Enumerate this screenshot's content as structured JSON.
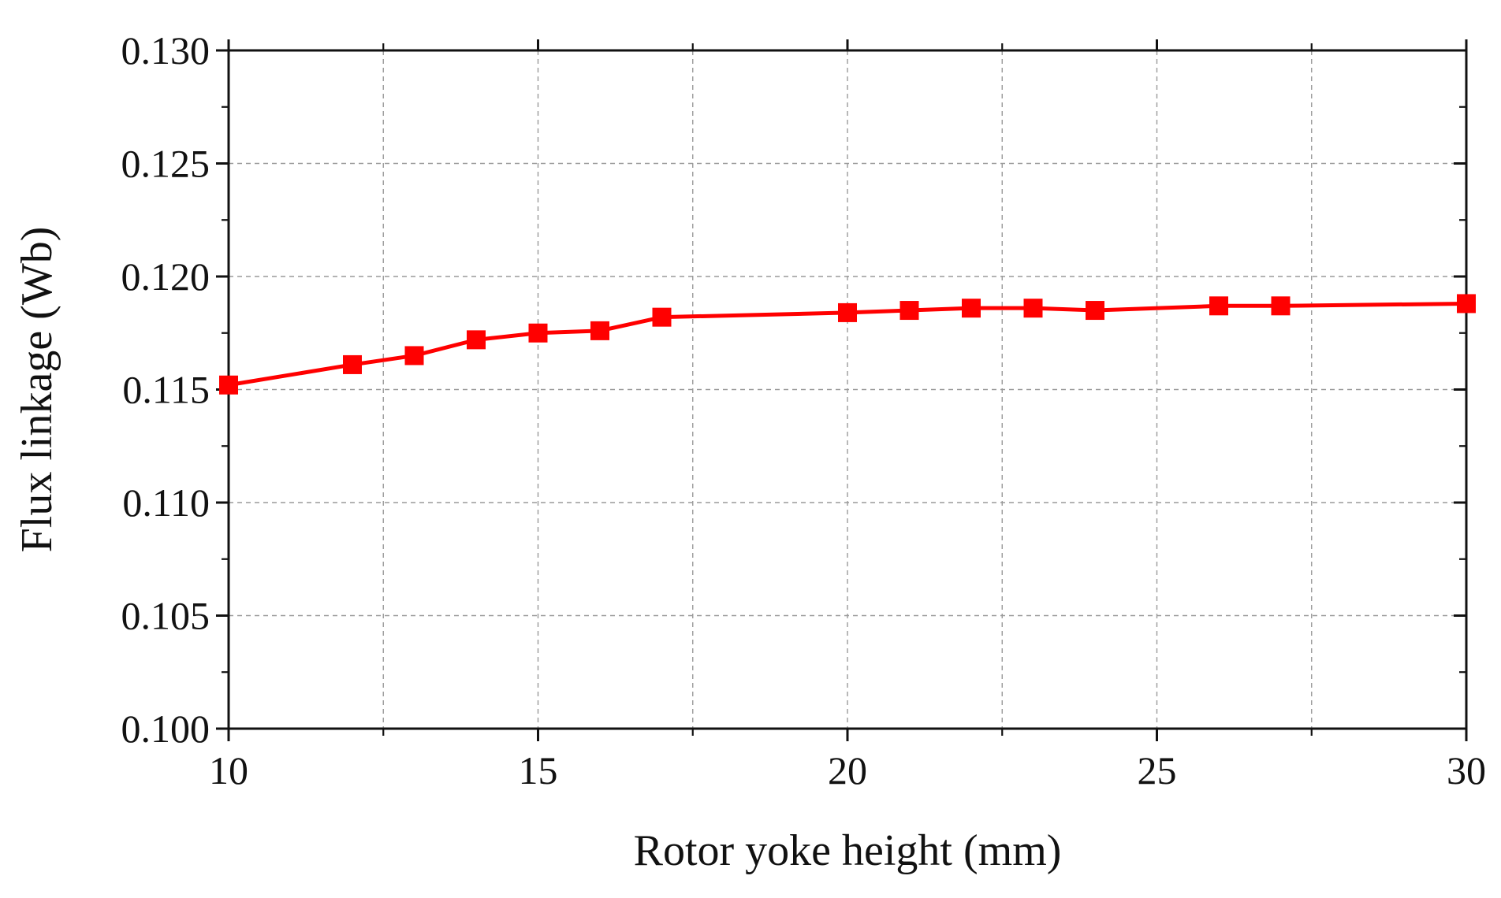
{
  "chart_data": {
    "type": "line",
    "title": "",
    "xlabel": "Rotor yoke height (mm)",
    "ylabel": "Flux linkage (Wb)",
    "xlim": [
      10,
      30
    ],
    "ylim": [
      0.1,
      0.13
    ],
    "x_ticks": [
      10,
      15,
      20,
      25,
      30
    ],
    "x_tick_labels": [
      "10",
      "15",
      "20",
      "25",
      "30"
    ],
    "y_ticks": [
      0.1,
      0.105,
      0.11,
      0.115,
      0.12,
      0.125,
      0.13
    ],
    "y_tick_labels": [
      "0.100",
      "0.105",
      "0.110",
      "0.115",
      "0.120",
      "0.125",
      "0.130"
    ],
    "grid": true,
    "legend": "none",
    "series": [
      {
        "color": "#ff0000",
        "marker": "square",
        "x": [
          10,
          12,
          13,
          14,
          15,
          16,
          17,
          20,
          21,
          22,
          23,
          24,
          26,
          27,
          30
        ],
        "y": [
          0.1152,
          0.1161,
          0.1165,
          0.1172,
          0.1175,
          0.1176,
          0.1182,
          0.1184,
          0.1185,
          0.1186,
          0.1186,
          0.1185,
          0.1187,
          0.1187,
          0.1188
        ]
      }
    ]
  }
}
